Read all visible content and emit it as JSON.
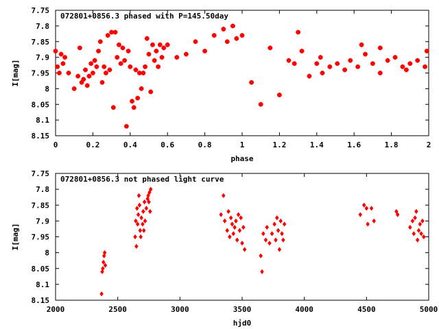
{
  "colors": {
    "points": "#ff0000",
    "axes": "#000000",
    "background": "#ffffff"
  },
  "chart_data": [
    {
      "type": "scatter",
      "title": "072801+0856.3 phased with P=145.50day",
      "xlabel": "phase",
      "ylabel": "I[mag]",
      "xlim": [
        0,
        2
      ],
      "ylim": [
        7.75,
        8.15
      ],
      "y_inverted": true,
      "xticks": [
        "0",
        "0.2",
        "0.4",
        "0.6",
        "0.8",
        "1",
        "1.2",
        "1.4",
        "1.6",
        "1.8",
        "2"
      ],
      "yticks": [
        "7.75",
        "7.8",
        "7.85",
        "7.9",
        "7.95",
        "8",
        "8.05",
        "8.1",
        "8.15"
      ],
      "marker": "star",
      "grid": false,
      "x": [
        0.0,
        0.01,
        0.02,
        0.03,
        0.04,
        0.05,
        0.07,
        0.1,
        0.12,
        0.13,
        0.14,
        0.15,
        0.16,
        0.17,
        0.18,
        0.19,
        0.2,
        0.21,
        0.22,
        0.23,
        0.24,
        0.25,
        0.26,
        0.27,
        0.28,
        0.29,
        0.3,
        0.31,
        0.32,
        0.33,
        0.34,
        0.35,
        0.36,
        0.37,
        0.38,
        0.39,
        0.4,
        0.41,
        0.42,
        0.43,
        0.44,
        0.45,
        0.46,
        0.47,
        0.48,
        0.49,
        0.5,
        0.51,
        0.52,
        0.53,
        0.54,
        0.55,
        0.56,
        0.57,
        0.58,
        0.6,
        0.65,
        0.7,
        0.75,
        0.8,
        0.85,
        0.9,
        0.92,
        0.95,
        0.97,
        1.0,
        1.05,
        1.1,
        1.15,
        1.2,
        1.25,
        1.28,
        1.32,
        1.36,
        1.4,
        1.43,
        1.47,
        1.51,
        1.55,
        1.58,
        1.62,
        1.66,
        1.7,
        1.74,
        1.78,
        1.82,
        1.86,
        1.9,
        1.94,
        1.98,
        1.99,
        1.74,
        1.3,
        1.42,
        1.64,
        1.88
      ],
      "y": [
        7.88,
        7.93,
        7.95,
        7.89,
        7.92,
        7.9,
        7.95,
        8.0,
        7.96,
        7.87,
        7.98,
        7.97,
        7.94,
        7.99,
        7.96,
        7.92,
        7.95,
        7.91,
        7.93,
        7.88,
        7.85,
        7.98,
        7.93,
        7.95,
        7.83,
        7.94,
        7.82,
        8.06,
        7.82,
        7.9,
        7.86,
        7.92,
        7.87,
        7.91,
        8.12,
        7.88,
        7.93,
        8.04,
        8.06,
        7.94,
        8.03,
        7.95,
        8.0,
        7.95,
        7.93,
        7.84,
        7.89,
        8.01,
        7.86,
        7.91,
        7.88,
        7.93,
        7.86,
        7.9,
        7.87,
        7.86,
        7.9,
        7.89,
        7.85,
        7.88,
        7.83,
        7.81,
        7.85,
        7.8,
        7.84,
        7.83,
        7.98,
        8.05,
        7.87,
        8.02,
        7.91,
        7.92,
        7.88,
        7.96,
        7.92,
        7.95,
        7.93,
        7.92,
        7.94,
        7.91,
        7.93,
        7.89,
        7.92,
        7.95,
        7.91,
        7.9,
        7.93,
        7.92,
        7.91,
        7.93,
        7.88,
        7.87,
        7.82,
        7.9,
        7.86,
        7.94
      ]
    },
    {
      "type": "scatter",
      "title": "072801+0856.3 not phased light curve",
      "xlabel": "hjd0",
      "ylabel": "I[mag]",
      "xlim": [
        2000,
        5000
      ],
      "ylim": [
        7.75,
        8.15
      ],
      "y_inverted": true,
      "xticks": [
        "2000",
        "2500",
        "3000",
        "3500",
        "4000",
        "4500",
        "5000"
      ],
      "yticks": [
        "7.75",
        "7.8",
        "7.85",
        "7.9",
        "7.95",
        "8",
        "8.05",
        "8.1",
        "8.15"
      ],
      "marker": "diamond",
      "grid": false,
      "x": [
        2370,
        2375,
        2380,
        2385,
        2390,
        2395,
        2400,
        2640,
        2645,
        2650,
        2655,
        2660,
        2665,
        2670,
        2675,
        2680,
        2685,
        2690,
        2700,
        2705,
        2710,
        2715,
        2720,
        2730,
        2740,
        2745,
        2750,
        2755,
        2760,
        2765,
        3330,
        3350,
        3360,
        3380,
        3390,
        3400,
        3410,
        3420,
        3430,
        3440,
        3450,
        3460,
        3470,
        3480,
        3490,
        3500,
        3510,
        3520,
        3650,
        3660,
        3670,
        3690,
        3700,
        3720,
        3740,
        3760,
        3770,
        3780,
        3790,
        3800,
        3810,
        3820,
        3830,
        3840,
        4450,
        4480,
        4500,
        4510,
        4540,
        4560,
        4740,
        4750,
        4850,
        4870,
        4880,
        4890,
        4900,
        4910,
        4920,
        4930,
        4940,
        4950,
        4960
      ],
      "y": [
        8.13,
        8.06,
        8.05,
        8.03,
        8.01,
        8.0,
        8.04,
        7.95,
        7.9,
        7.98,
        7.86,
        7.91,
        7.88,
        7.82,
        7.85,
        7.93,
        7.95,
        7.89,
        7.91,
        7.87,
        7.93,
        7.84,
        7.9,
        7.86,
        7.83,
        7.82,
        7.84,
        7.81,
        7.87,
        7.8,
        7.88,
        7.82,
        7.9,
        7.93,
        7.87,
        7.95,
        7.89,
        7.91,
        7.94,
        7.92,
        7.9,
        7.96,
        7.88,
        7.93,
        7.89,
        7.97,
        7.92,
        7.99,
        8.01,
        8.06,
        7.94,
        7.96,
        7.92,
        7.97,
        7.94,
        7.91,
        7.96,
        7.89,
        7.93,
        7.99,
        7.9,
        7.94,
        7.96,
        7.91,
        7.88,
        7.85,
        7.86,
        7.91,
        7.86,
        7.9,
        7.87,
        7.88,
        7.92,
        7.9,
        7.94,
        7.89,
        7.87,
        7.96,
        7.93,
        7.91,
        7.94,
        7.9,
        7.95
      ]
    }
  ]
}
